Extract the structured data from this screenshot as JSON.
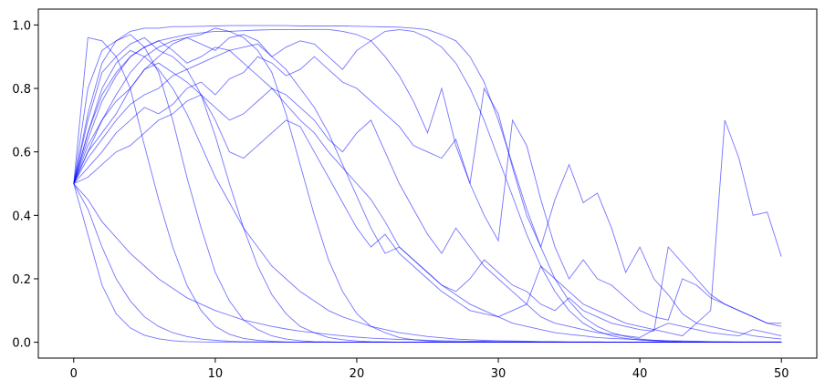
{
  "chart_data": {
    "type": "line",
    "title": "",
    "xlabel": "",
    "ylabel": "",
    "xlim": [
      -2.5,
      52.5
    ],
    "ylim": [
      -0.05,
      1.05
    ],
    "grid": false,
    "legend": "none",
    "line_color": "#0000ff",
    "line_alpha": 0.55,
    "x_ticks": [
      0,
      10,
      20,
      30,
      40,
      50
    ],
    "y_ticks": [
      0.0,
      0.2,
      0.4,
      0.6,
      0.8,
      1.0
    ],
    "x_tick_labels": [
      "0",
      "10",
      "20",
      "30",
      "40",
      "50"
    ],
    "y_tick_labels": [
      "0.0",
      "0.2",
      "0.4",
      "0.6",
      "0.8",
      "1.0"
    ],
    "x": [
      0,
      1,
      2,
      3,
      4,
      5,
      6,
      7,
      8,
      9,
      10,
      11,
      12,
      13,
      14,
      15,
      16,
      17,
      18,
      19,
      20,
      21,
      22,
      23,
      24,
      25,
      26,
      27,
      28,
      29,
      30,
      31,
      32,
      33,
      34,
      35,
      36,
      37,
      38,
      39,
      40,
      41,
      42,
      43,
      44,
      45,
      46,
      47,
      48,
      49,
      50
    ],
    "series": [
      {
        "values": [
          0.5,
          0.34,
          0.18,
          0.09,
          0.045,
          0.022,
          0.011,
          0.005,
          0.002,
          0.001,
          0.0,
          0.0,
          0.0,
          0.0,
          0.0,
          0.0,
          0.0,
          0.0,
          0.0,
          0.0,
          0.0,
          0.0,
          0.0,
          0.0,
          0.0,
          0.0,
          0.0,
          0.0,
          0.0,
          0.0,
          0.0,
          0.0,
          0.0,
          0.0,
          0.0,
          0.0,
          0.0,
          0.0,
          0.0,
          0.0,
          0.0,
          0.0,
          0.0,
          0.0,
          0.0,
          0.0,
          0.0,
          0.0,
          0.0,
          0.0,
          0.0
        ]
      },
      {
        "values": [
          0.5,
          0.42,
          0.3,
          0.2,
          0.13,
          0.08,
          0.05,
          0.03,
          0.018,
          0.01,
          0.006,
          0.003,
          0.002,
          0.001,
          0.0,
          0.0,
          0.0,
          0.0,
          0.0,
          0.0,
          0.0,
          0.0,
          0.0,
          0.0,
          0.0,
          0.0,
          0.0,
          0.0,
          0.0,
          0.0,
          0.0,
          0.0,
          0.0,
          0.0,
          0.0,
          0.0,
          0.0,
          0.0,
          0.0,
          0.0,
          0.0,
          0.0,
          0.0,
          0.0,
          0.0,
          0.0,
          0.0,
          0.0,
          0.0,
          0.0,
          0.0
        ]
      },
      {
        "values": [
          0.5,
          0.96,
          0.95,
          0.9,
          0.8,
          0.62,
          0.45,
          0.3,
          0.18,
          0.1,
          0.05,
          0.025,
          0.012,
          0.006,
          0.003,
          0.001,
          0.0,
          0.0,
          0.0,
          0.0,
          0.0,
          0.0,
          0.0,
          0.0,
          0.0,
          0.0,
          0.0,
          0.0,
          0.0,
          0.0,
          0.0,
          0.0,
          0.0,
          0.0,
          0.0,
          0.0,
          0.0,
          0.0,
          0.0,
          0.0,
          0.0,
          0.0,
          0.0,
          0.0,
          0.0,
          0.0,
          0.0,
          0.0,
          0.0,
          0.0,
          0.0
        ]
      },
      {
        "values": [
          0.5,
          0.8,
          0.92,
          0.95,
          0.97,
          0.93,
          0.85,
          0.7,
          0.52,
          0.36,
          0.22,
          0.13,
          0.07,
          0.04,
          0.02,
          0.01,
          0.005,
          0.002,
          0.001,
          0.0,
          0.0,
          0.0,
          0.0,
          0.0,
          0.0,
          0.0,
          0.0,
          0.0,
          0.0,
          0.0,
          0.0,
          0.0,
          0.0,
          0.0,
          0.0,
          0.0,
          0.0,
          0.0,
          0.0,
          0.0,
          0.0,
          0.0,
          0.0,
          0.0,
          0.0,
          0.0,
          0.0,
          0.0,
          0.0,
          0.0,
          0.0
        ]
      },
      {
        "values": [
          0.5,
          0.7,
          0.85,
          0.9,
          0.94,
          0.96,
          0.92,
          0.9,
          0.86,
          0.78,
          0.65,
          0.5,
          0.36,
          0.24,
          0.15,
          0.09,
          0.05,
          0.03,
          0.015,
          0.008,
          0.004,
          0.002,
          0.001,
          0.0,
          0.0,
          0.0,
          0.0,
          0.0,
          0.0,
          0.0,
          0.0,
          0.0,
          0.0,
          0.0,
          0.0,
          0.0,
          0.0,
          0.0,
          0.0,
          0.0,
          0.0,
          0.0,
          0.0,
          0.0,
          0.0,
          0.0,
          0.0,
          0.0,
          0.0,
          0.0,
          0.0
        ]
      },
      {
        "values": [
          0.5,
          0.6,
          0.66,
          0.72,
          0.8,
          0.86,
          0.9,
          0.94,
          0.96,
          0.97,
          0.99,
          0.98,
          0.96,
          0.92,
          0.85,
          0.72,
          0.56,
          0.4,
          0.26,
          0.16,
          0.09,
          0.05,
          0.03,
          0.015,
          0.008,
          0.004,
          0.002,
          0.001,
          0.0,
          0.0,
          0.0,
          0.0,
          0.0,
          0.0,
          0.0,
          0.0,
          0.0,
          0.0,
          0.0,
          0.0,
          0.0,
          0.0,
          0.0,
          0.0,
          0.0,
          0.0,
          0.0,
          0.0,
          0.0,
          0.0,
          0.0
        ]
      },
      {
        "values": [
          0.5,
          0.72,
          0.88,
          0.95,
          0.98,
          0.99,
          0.99,
          0.995,
          0.995,
          0.996,
          0.997,
          0.998,
          0.998,
          0.998,
          0.998,
          0.998,
          0.997,
          0.997,
          0.997,
          0.997,
          0.996,
          0.995,
          0.994,
          0.993,
          0.99,
          0.985,
          0.97,
          0.95,
          0.9,
          0.82,
          0.7,
          0.56,
          0.42,
          0.3,
          0.2,
          0.13,
          0.08,
          0.05,
          0.03,
          0.018,
          0.01,
          0.006,
          0.004,
          0.002,
          0.001,
          0.001,
          0.0,
          0.0,
          0.0,
          0.0,
          0.0
        ]
      },
      {
        "values": [
          0.5,
          0.66,
          0.78,
          0.85,
          0.9,
          0.93,
          0.95,
          0.96,
          0.97,
          0.975,
          0.98,
          0.98,
          0.982,
          0.984,
          0.985,
          0.985,
          0.985,
          0.986,
          0.986,
          0.98,
          0.97,
          0.95,
          0.98,
          0.985,
          0.98,
          0.96,
          0.93,
          0.88,
          0.8,
          0.7,
          0.58,
          0.46,
          0.34,
          0.24,
          0.16,
          0.1,
          0.06,
          0.035,
          0.02,
          0.012,
          0.007,
          0.004,
          0.002,
          0.001,
          0.0,
          0.0,
          0.0,
          0.0,
          0.0,
          0.0,
          0.0
        ]
      },
      {
        "values": [
          0.5,
          0.62,
          0.7,
          0.78,
          0.85,
          0.9,
          0.93,
          0.95,
          0.96,
          0.94,
          0.92,
          0.96,
          0.97,
          0.95,
          0.9,
          0.93,
          0.95,
          0.94,
          0.9,
          0.86,
          0.92,
          0.95,
          0.9,
          0.84,
          0.76,
          0.66,
          0.8,
          0.62,
          0.5,
          0.8,
          0.72,
          0.55,
          0.4,
          0.3,
          0.45,
          0.56,
          0.44,
          0.47,
          0.36,
          0.22,
          0.3,
          0.2,
          0.15,
          0.09,
          0.06,
          0.1,
          0.7,
          0.58,
          0.4,
          0.41,
          0.27
        ]
      },
      {
        "values": [
          0.5,
          0.55,
          0.6,
          0.66,
          0.7,
          0.74,
          0.72,
          0.75,
          0.8,
          0.82,
          0.78,
          0.83,
          0.85,
          0.9,
          0.88,
          0.84,
          0.86,
          0.9,
          0.86,
          0.82,
          0.8,
          0.76,
          0.72,
          0.68,
          0.62,
          0.6,
          0.58,
          0.64,
          0.5,
          0.4,
          0.32,
          0.7,
          0.62,
          0.45,
          0.3,
          0.2,
          0.26,
          0.2,
          0.18,
          0.14,
          0.1,
          0.08,
          0.07,
          0.2,
          0.18,
          0.14,
          0.12,
          0.1,
          0.08,
          0.06,
          0.06
        ]
      },
      {
        "values": [
          0.5,
          0.64,
          0.76,
          0.84,
          0.9,
          0.93,
          0.95,
          0.92,
          0.88,
          0.9,
          0.93,
          0.92,
          0.88,
          0.84,
          0.8,
          0.75,
          0.7,
          0.66,
          0.6,
          0.55,
          0.5,
          0.45,
          0.38,
          0.3,
          0.26,
          0.22,
          0.18,
          0.16,
          0.2,
          0.26,
          0.22,
          0.18,
          0.16,
          0.12,
          0.1,
          0.14,
          0.1,
          0.08,
          0.06,
          0.05,
          0.04,
          0.035,
          0.3,
          0.25,
          0.2,
          0.15,
          0.12,
          0.1,
          0.08,
          0.06,
          0.05
        ]
      },
      {
        "values": [
          0.5,
          0.6,
          0.7,
          0.76,
          0.8,
          0.86,
          0.88,
          0.85,
          0.82,
          0.78,
          0.7,
          0.6,
          0.58,
          0.62,
          0.66,
          0.7,
          0.68,
          0.6,
          0.52,
          0.44,
          0.36,
          0.3,
          0.34,
          0.28,
          0.24,
          0.2,
          0.16,
          0.13,
          0.1,
          0.09,
          0.08,
          0.1,
          0.12,
          0.08,
          0.06,
          0.05,
          0.04,
          0.03,
          0.025,
          0.02,
          0.015,
          0.04,
          0.06,
          0.05,
          0.04,
          0.03,
          0.025,
          0.02,
          0.04,
          0.03,
          0.02
        ]
      },
      {
        "values": [
          0.5,
          0.58,
          0.64,
          0.7,
          0.75,
          0.78,
          0.8,
          0.84,
          0.86,
          0.88,
          0.9,
          0.92,
          0.93,
          0.94,
          0.9,
          0.86,
          0.8,
          0.74,
          0.66,
          0.56,
          0.46,
          0.36,
          0.28,
          0.3,
          0.26,
          0.22,
          0.18,
          0.15,
          0.12,
          0.1,
          0.08,
          0.06,
          0.05,
          0.04,
          0.03,
          0.025,
          0.02,
          0.015,
          0.012,
          0.01,
          0.008,
          0.006,
          0.005,
          0.004,
          0.003,
          0.002,
          0.002,
          0.001,
          0.001,
          0.001,
          0.001
        ]
      },
      {
        "values": [
          0.5,
          0.66,
          0.8,
          0.88,
          0.92,
          0.9,
          0.86,
          0.8,
          0.72,
          0.62,
          0.52,
          0.44,
          0.36,
          0.3,
          0.24,
          0.2,
          0.16,
          0.13,
          0.1,
          0.08,
          0.065,
          0.05,
          0.04,
          0.03,
          0.024,
          0.018,
          0.014,
          0.01,
          0.008,
          0.006,
          0.005,
          0.004,
          0.003,
          0.002,
          0.002,
          0.001,
          0.001,
          0.001,
          0.0,
          0.0,
          0.0,
          0.0,
          0.0,
          0.0,
          0.0,
          0.0,
          0.0,
          0.0,
          0.0,
          0.0,
          0.0
        ]
      },
      {
        "values": [
          0.5,
          0.52,
          0.56,
          0.6,
          0.62,
          0.66,
          0.7,
          0.72,
          0.76,
          0.78,
          0.74,
          0.7,
          0.72,
          0.76,
          0.8,
          0.78,
          0.74,
          0.7,
          0.64,
          0.6,
          0.66,
          0.7,
          0.6,
          0.5,
          0.42,
          0.34,
          0.28,
          0.36,
          0.3,
          0.24,
          0.2,
          0.16,
          0.12,
          0.24,
          0.2,
          0.16,
          0.12,
          0.1,
          0.08,
          0.06,
          0.05,
          0.04,
          0.03,
          0.02,
          0.06,
          0.05,
          0.04,
          0.03,
          0.02,
          0.015,
          0.01
        ]
      },
      {
        "values": [
          0.5,
          0.45,
          0.38,
          0.33,
          0.28,
          0.24,
          0.2,
          0.17,
          0.14,
          0.12,
          0.1,
          0.085,
          0.07,
          0.06,
          0.05,
          0.042,
          0.035,
          0.03,
          0.025,
          0.02,
          0.016,
          0.013,
          0.011,
          0.009,
          0.008,
          0.006,
          0.005,
          0.004,
          0.003,
          0.003,
          0.002,
          0.002,
          0.001,
          0.001,
          0.001,
          0.0,
          0.0,
          0.0,
          0.0,
          0.0,
          0.0,
          0.0,
          0.0,
          0.0,
          0.0,
          0.0,
          0.0,
          0.0,
          0.0,
          0.0,
          0.0
        ]
      }
    ]
  }
}
